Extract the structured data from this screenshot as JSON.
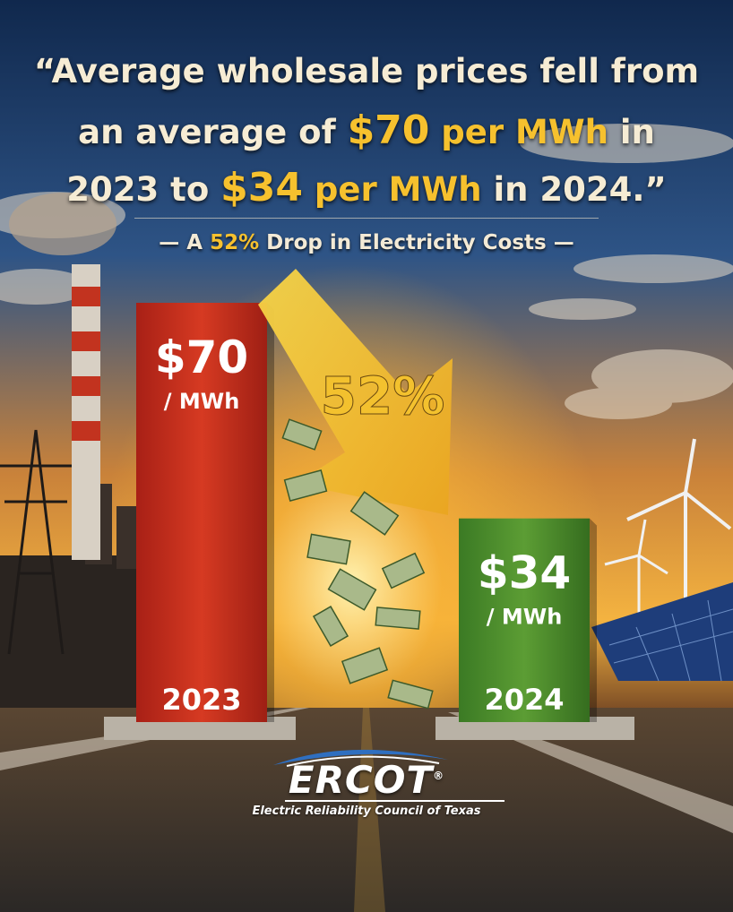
{
  "headline": {
    "open_quote": "“",
    "line1": "Average wholesale prices fell from",
    "line2_a": "an average of ",
    "line2_price": "$70",
    "line2_b": " per MWh",
    "line2_c": " in",
    "line3_a": "2023 to ",
    "line3_price": "$34",
    "line3_b": " per MWh",
    "line3_c": " in 2024.”"
  },
  "subtitle": {
    "dash_left": "— A ",
    "percent": "52%",
    "rest": " Drop in Electricity Costs —"
  },
  "chart_data": {
    "type": "bar",
    "categories": [
      "2023",
      "2024"
    ],
    "values": [
      70,
      34
    ],
    "value_labels": [
      "$70",
      "$34"
    ],
    "unit_label": "/ MWh",
    "bar_colors": [
      "#c9301f",
      "#4a8b2a"
    ],
    "change_label": "52%",
    "title": "",
    "xlabel": "",
    "ylabel": ""
  },
  "logo": {
    "name": "ERCOT",
    "registered": "®",
    "tagline": "Electric Reliability Council of Texas"
  },
  "colors": {
    "accent_gold": "#f6c12e",
    "sky_top": "#13305a",
    "sunset": "#f0a030",
    "road": "#3a3633"
  },
  "icons": [
    "smokestack-icon",
    "transmission-tower-icon",
    "wind-turbine-icon",
    "solar-panel-icon",
    "money-bills-icon",
    "down-arrow-icon"
  ]
}
